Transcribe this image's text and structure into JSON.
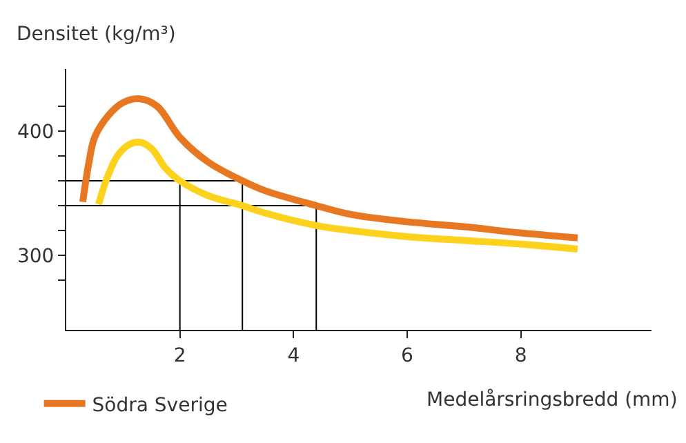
{
  "chart_data": {
    "type": "line",
    "xlabel": "Medelårsringsbredd (mm)",
    "ylabel": "Densitet (kg/m³)",
    "series": [
      {
        "color": "#000000",
        "x": [
          0,
          3.1,
          3.1
        ],
        "values": [
          360,
          360,
          240
        ]
      },
      {
        "color": "#000000",
        "x": [
          2,
          2
        ],
        "values": [
          240,
          360
        ]
      },
      {
        "color": "#000000",
        "x": [
          0,
          4.4,
          4.4
        ],
        "values": [
          340,
          340,
          240
        ]
      },
      {
        "color": "#fdd21c",
        "x": [
          0.57,
          0.7,
          0.9,
          1.1,
          1.3,
          1.5,
          1.75,
          2,
          2.5,
          3.1,
          3.5,
          4.4,
          5,
          6,
          7,
          8,
          9
        ],
        "values": [
          341,
          360,
          380,
          389,
          391,
          386,
          370,
          360,
          348,
          340,
          334,
          324,
          320,
          315,
          312,
          309,
          305
        ]
      },
      {
        "name": "Södra Sverige",
        "color": "#e87722",
        "x": [
          0.29,
          0.4,
          0.5,
          0.75,
          1.0,
          1.3,
          1.6,
          2.0,
          2.5,
          3.1,
          3.5,
          4.4,
          5,
          6,
          7,
          8,
          9
        ],
        "values": [
          343,
          375,
          395,
          413,
          423,
          426,
          420,
          395,
          375,
          360,
          352,
          340,
          333,
          327,
          323,
          318,
          314
        ]
      }
    ],
    "xlim": [
      0,
      10.3
    ],
    "xticks": [
      2,
      4,
      6,
      8
    ],
    "ylim": [
      240,
      450
    ],
    "yticks": [
      {
        "value": 280,
        "label": null
      },
      300,
      {
        "value": 320,
        "label": null
      },
      {
        "value": 340,
        "label": null
      },
      {
        "value": 360,
        "label": null
      },
      {
        "value": 380,
        "label": null
      },
      400,
      {
        "value": 420,
        "label": null
      }
    ],
    "legend": "bottom left",
    "marker": "none",
    "line_style": "solid"
  }
}
